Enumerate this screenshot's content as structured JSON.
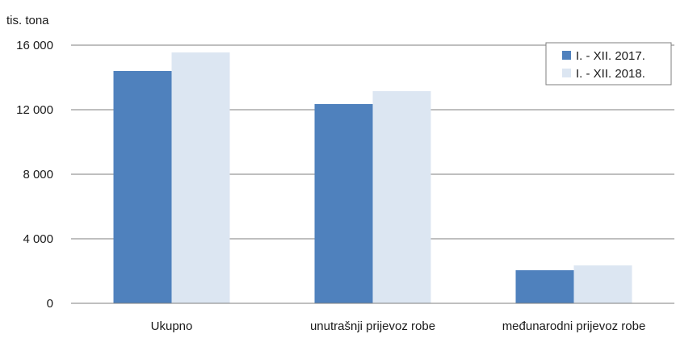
{
  "chart_data": {
    "type": "bar",
    "ylabel": "tis. tona",
    "ylim": [
      0,
      16000
    ],
    "yticks": [
      0,
      4000,
      8000,
      12000,
      16000
    ],
    "ytick_labels": [
      "0",
      "4 000",
      "8 000",
      "12 000",
      "16 000"
    ],
    "categories": [
      "Ukupno",
      "unutrašnji prijevoz robe",
      "međunarodni prijevoz robe"
    ],
    "series": [
      {
        "name": "I. - XII. 2017.",
        "color": "#4f81bd",
        "values": [
          14400,
          12350,
          2050
        ]
      },
      {
        "name": "I. - XII. 2018.",
        "color": "#dce6f2",
        "values": [
          15550,
          13150,
          2350
        ]
      }
    ],
    "grid": true,
    "legend_position": "top-right"
  }
}
